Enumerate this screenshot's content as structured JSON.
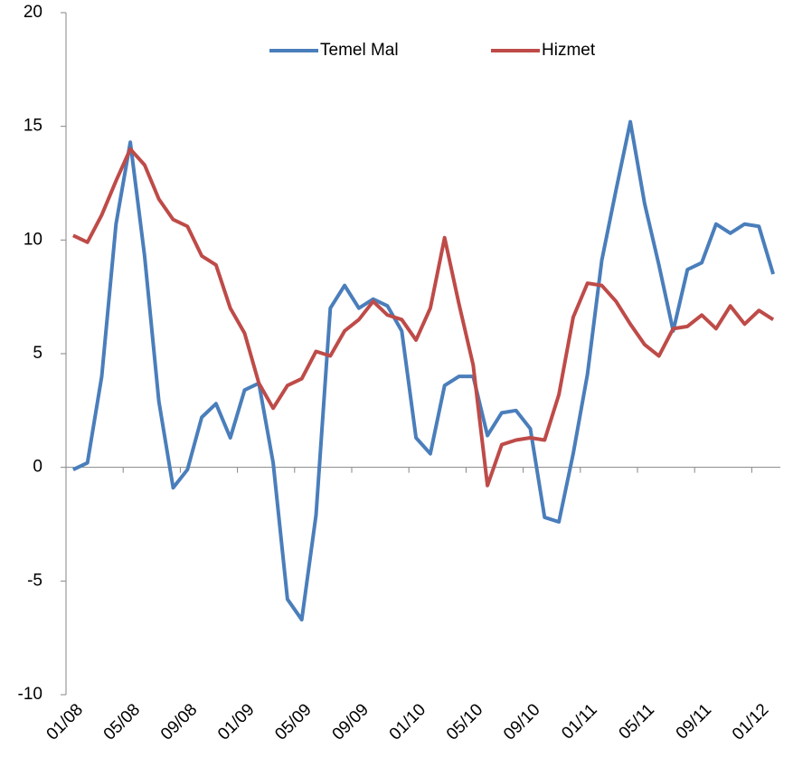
{
  "chart_data": {
    "type": "line",
    "categories": [
      "01/08",
      null,
      null,
      null,
      "05/08",
      null,
      null,
      null,
      "09/08",
      null,
      null,
      null,
      "01/09",
      null,
      null,
      null,
      "05/09",
      null,
      null,
      null,
      "09/09",
      null,
      null,
      null,
      "01/10",
      null,
      null,
      null,
      "05/10",
      null,
      null,
      null,
      "09/10",
      null,
      null,
      null,
      "01/11",
      null,
      null,
      null,
      "05/11",
      null,
      null,
      null,
      "09/11",
      null,
      null,
      null,
      "01/12",
      null
    ],
    "series": [
      {
        "name": "Temel Mal",
        "color": "#4a7ebb",
        "values": [
          -0.1,
          0.2,
          4.0,
          10.7,
          14.3,
          9.3,
          2.9,
          -0.9,
          -0.1,
          2.2,
          2.8,
          1.3,
          3.4,
          3.7,
          0.2,
          -5.8,
          -6.7,
          -2.1,
          7.0,
          8.0,
          7.0,
          7.4,
          7.1,
          6.0,
          1.3,
          0.6,
          3.6,
          4.0,
          4.0,
          1.4,
          2.4,
          2.5,
          1.7,
          -2.2,
          -2.4,
          0.6,
          4.1,
          9.1,
          12.2,
          15.2,
          11.6,
          8.9,
          6.0,
          8.7,
          9.0,
          10.7,
          10.3,
          10.7,
          10.6,
          8.5
        ]
      },
      {
        "name": "Hizmet",
        "color": "#be4b48",
        "values": [
          10.2,
          9.9,
          11.1,
          12.6,
          14.0,
          13.3,
          11.8,
          10.9,
          10.6,
          9.3,
          8.9,
          7.0,
          5.9,
          3.7,
          2.6,
          3.6,
          3.9,
          5.1,
          4.9,
          6.0,
          6.5,
          7.3,
          6.7,
          6.5,
          5.6,
          7.0,
          10.1,
          7.2,
          4.5,
          -0.8,
          1.0,
          1.2,
          1.3,
          1.2,
          3.2,
          6.6,
          8.1,
          8.0,
          7.3,
          6.3,
          5.4,
          4.9,
          6.1,
          6.2,
          6.7,
          6.1,
          7.1,
          6.3,
          6.9,
          6.5
        ]
      }
    ],
    "ylim": [
      -10,
      20
    ],
    "yticks": [
      -10,
      -5,
      0,
      5,
      10,
      15,
      20
    ],
    "legend": "top",
    "grid": false
  }
}
